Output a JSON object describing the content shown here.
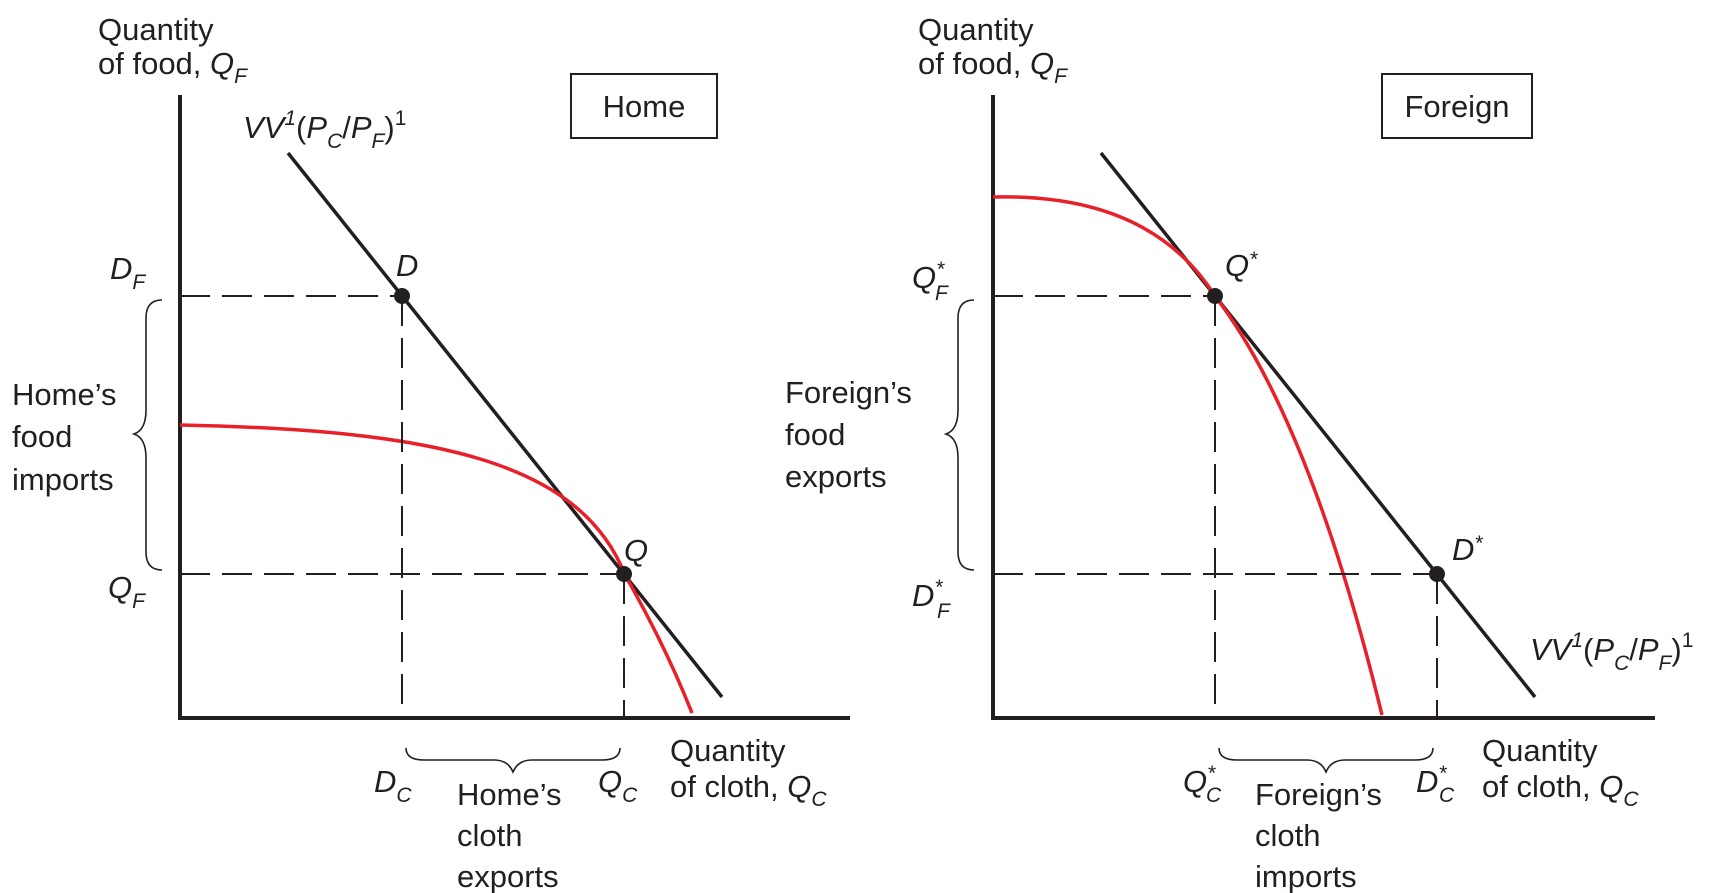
{
  "home": {
    "y_axis_label_line1": "Quantity",
    "y_axis_label_line2": "of food, ",
    "y_axis_var": "Q",
    "y_axis_var_sub": "F",
    "x_axis_label_line1": "Quantity",
    "x_axis_label_line2": "of cloth, ",
    "x_axis_var": "Q",
    "x_axis_var_sub": "C",
    "title": "Home",
    "line_label": {
      "vv": "VV",
      "sup": "1",
      "paren_open": "(",
      "pc": "P",
      "pc_sub": "C",
      "slash": "/",
      "pf": "P",
      "pf_sub": "F",
      "paren_close": ")",
      "sup2": "1"
    },
    "point_d": "D",
    "point_q": "Q",
    "tick_df": {
      "main": "D",
      "sub": "F"
    },
    "tick_qf": {
      "main": "Q",
      "sub": "F"
    },
    "tick_dc": {
      "main": "D",
      "sub": "C"
    },
    "tick_qc": {
      "main": "Q",
      "sub": "C"
    },
    "food_imports": [
      "Home’s",
      "food",
      "imports"
    ],
    "cloth_exports": [
      "Home’s",
      "cloth",
      "exports"
    ]
  },
  "foreign": {
    "y_axis_label_line1": "Quantity",
    "y_axis_label_line2": "of food, ",
    "y_axis_var": "Q",
    "y_axis_var_sub": "F",
    "x_axis_label_line1": "Quantity",
    "x_axis_label_line2": "of cloth, ",
    "x_axis_var": "Q",
    "x_axis_var_sub": "C",
    "title": "Foreign",
    "line_label": {
      "vv": "VV",
      "sup": "1",
      "paren_open": "(",
      "pc": "P",
      "pc_sub": "C",
      "slash": "/",
      "pf": "P",
      "pf_sub": "F",
      "paren_close": ")",
      "sup2": "1"
    },
    "point_q": "Q",
    "point_q_star": "*",
    "point_d": "D",
    "point_d_star": "*",
    "tick_qf": {
      "main": "Q",
      "star": "*",
      "sub": "F"
    },
    "tick_df": {
      "main": "D",
      "star": "*",
      "sub": "F"
    },
    "tick_qc": {
      "main": "Q",
      "star": "*",
      "sub": "C"
    },
    "tick_dc": {
      "main": "D",
      "star": "*",
      "sub": "C"
    },
    "food_exports": [
      "Foreign’s",
      "food",
      "exports"
    ],
    "cloth_imports": [
      "Foreign’s",
      "cloth",
      "imports"
    ]
  },
  "colors": {
    "ppf": "#e8202a",
    "ink": "#231f20"
  }
}
